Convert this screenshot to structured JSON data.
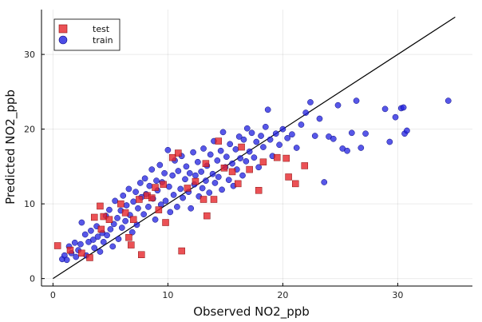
{
  "chart_data": {
    "type": "scatter",
    "xlabel": "Observed NO2_ppb",
    "ylabel": "Predicted NO2_ppb",
    "xlim": [
      -1,
      36.5
    ],
    "ylim": [
      -1,
      36
    ],
    "xticks": [
      0,
      10,
      20,
      30
    ],
    "yticks": [
      0,
      10,
      20,
      30
    ],
    "grid": true,
    "legend_position": "top-left",
    "reference_line": {
      "x": [
        0,
        35
      ],
      "y": [
        0,
        35
      ],
      "color": "#000000"
    },
    "series": [
      {
        "name": "test",
        "marker": "square",
        "color": "#e6262b",
        "points": [
          [
            0.4,
            4.4
          ],
          [
            1.5,
            3.8
          ],
          [
            2.5,
            3.4
          ],
          [
            3.2,
            2.8
          ],
          [
            3.6,
            8.2
          ],
          [
            4.1,
            9.7
          ],
          [
            4.2,
            6.6
          ],
          [
            4.4,
            8.3
          ],
          [
            4.9,
            7.9
          ],
          [
            5.9,
            10.0
          ],
          [
            6.3,
            8.8
          ],
          [
            6.6,
            5.5
          ],
          [
            6.8,
            4.5
          ],
          [
            7.0,
            7.9
          ],
          [
            7.5,
            10.6
          ],
          [
            7.7,
            3.2
          ],
          [
            8.2,
            11.1
          ],
          [
            8.6,
            10.8
          ],
          [
            8.9,
            12.2
          ],
          [
            9.2,
            9.2
          ],
          [
            9.6,
            12.6
          ],
          [
            9.8,
            7.5
          ],
          [
            10.4,
            16.2
          ],
          [
            10.9,
            16.8
          ],
          [
            11.2,
            3.7
          ],
          [
            11.7,
            12.1
          ],
          [
            12.4,
            13.0
          ],
          [
            13.1,
            10.6
          ],
          [
            13.3,
            15.4
          ],
          [
            13.4,
            8.4
          ],
          [
            14.0,
            10.6
          ],
          [
            14.4,
            18.4
          ],
          [
            14.9,
            14.8
          ],
          [
            15.6,
            14.3
          ],
          [
            16.1,
            12.7
          ],
          [
            16.4,
            17.6
          ],
          [
            17.1,
            14.6
          ],
          [
            17.9,
            11.8
          ],
          [
            18.3,
            15.6
          ],
          [
            19.5,
            16.2
          ],
          [
            20.3,
            16.1
          ],
          [
            20.5,
            13.6
          ],
          [
            21.1,
            12.7
          ],
          [
            21.9,
            15.1
          ]
        ]
      },
      {
        "name": "train",
        "marker": "circle",
        "color": "#1f1fe0",
        "points": [
          [
            0.8,
            2.6
          ],
          [
            1.0,
            3.1
          ],
          [
            1.2,
            2.5
          ],
          [
            1.4,
            4.3
          ],
          [
            1.6,
            3.4
          ],
          [
            1.9,
            4.8
          ],
          [
            2.0,
            2.9
          ],
          [
            2.2,
            3.8
          ],
          [
            2.4,
            4.6
          ],
          [
            2.5,
            7.5
          ],
          [
            2.8,
            5.9
          ],
          [
            2.9,
            3.1
          ],
          [
            3.1,
            4.9
          ],
          [
            3.3,
            6.4
          ],
          [
            3.5,
            5.2
          ],
          [
            3.6,
            4.1
          ],
          [
            3.8,
            7.0
          ],
          [
            3.9,
            5.6
          ],
          [
            4.1,
            3.6
          ],
          [
            4.3,
            6.1
          ],
          [
            4.4,
            4.9
          ],
          [
            4.6,
            8.4
          ],
          [
            4.7,
            5.8
          ],
          [
            4.9,
            9.2
          ],
          [
            5.0,
            6.6
          ],
          [
            5.2,
            4.3
          ],
          [
            5.3,
            7.3
          ],
          [
            5.4,
            10.4
          ],
          [
            5.6,
            8.1
          ],
          [
            5.7,
            5.3
          ],
          [
            5.9,
            9.1
          ],
          [
            6.0,
            6.8
          ],
          [
            6.1,
            11.1
          ],
          [
            6.3,
            7.7
          ],
          [
            6.4,
            9.8
          ],
          [
            6.6,
            12.0
          ],
          [
            6.7,
            8.5
          ],
          [
            6.9,
            6.2
          ],
          [
            7.0,
            10.3
          ],
          [
            7.2,
            11.6
          ],
          [
            7.3,
            7.2
          ],
          [
            7.4,
            9.4
          ],
          [
            7.6,
            12.8
          ],
          [
            7.7,
            10.9
          ],
          [
            7.9,
            8.6
          ],
          [
            8.0,
            13.4
          ],
          [
            8.1,
            11.3
          ],
          [
            8.3,
            9.6
          ],
          [
            8.4,
            12.4
          ],
          [
            8.6,
            14.6
          ],
          [
            8.7,
            10.7
          ],
          [
            8.9,
            7.9
          ],
          [
            9.0,
            13.1
          ],
          [
            9.1,
            11.8
          ],
          [
            9.3,
            15.2
          ],
          [
            9.4,
            9.9
          ],
          [
            9.5,
            12.9
          ],
          [
            9.7,
            14.1
          ],
          [
            9.8,
            10.4
          ],
          [
            10.0,
            17.2
          ],
          [
            10.1,
            12.3
          ],
          [
            10.2,
            8.9
          ],
          [
            10.4,
            13.8
          ],
          [
            10.5,
            11.2
          ],
          [
            10.6,
            15.8
          ],
          [
            10.8,
            9.6
          ],
          [
            10.9,
            14.4
          ],
          [
            11.1,
            12.0
          ],
          [
            11.2,
            16.4
          ],
          [
            11.3,
            10.8
          ],
          [
            11.5,
            13.3
          ],
          [
            11.6,
            15.0
          ],
          [
            11.8,
            11.6
          ],
          [
            11.9,
            14.1
          ],
          [
            12.0,
            9.4
          ],
          [
            12.2,
            16.9
          ],
          [
            12.3,
            12.6
          ],
          [
            12.4,
            13.8
          ],
          [
            12.6,
            15.6
          ],
          [
            12.7,
            11.0
          ],
          [
            12.9,
            14.3
          ],
          [
            13.0,
            12.1
          ],
          [
            13.1,
            17.4
          ],
          [
            13.3,
            13.1
          ],
          [
            13.4,
            15.1
          ],
          [
            13.6,
            11.5
          ],
          [
            13.7,
            16.6
          ],
          [
            13.9,
            14.0
          ],
          [
            14.0,
            18.4
          ],
          [
            14.1,
            12.8
          ],
          [
            14.3,
            15.8
          ],
          [
            14.4,
            13.6
          ],
          [
            14.6,
            17.1
          ],
          [
            14.7,
            11.9
          ],
          [
            14.8,
            19.6
          ],
          [
            15.0,
            14.9
          ],
          [
            15.1,
            16.3
          ],
          [
            15.3,
            13.2
          ],
          [
            15.4,
            18.0
          ],
          [
            15.6,
            15.4
          ],
          [
            15.7,
            12.4
          ],
          [
            15.9,
            17.3
          ],
          [
            16.0,
            14.6
          ],
          [
            16.2,
            19.0
          ],
          [
            16.3,
            16.1
          ],
          [
            16.5,
            13.8
          ],
          [
            16.6,
            18.6
          ],
          [
            16.8,
            15.7
          ],
          [
            16.9,
            20.1
          ],
          [
            17.1,
            17.0
          ],
          [
            17.3,
            19.5
          ],
          [
            17.5,
            16.2
          ],
          [
            17.7,
            18.3
          ],
          [
            17.9,
            14.9
          ],
          [
            18.1,
            19.1
          ],
          [
            18.3,
            17.6
          ],
          [
            18.5,
            20.3
          ],
          [
            18.7,
            22.6
          ],
          [
            18.9,
            18.6
          ],
          [
            19.1,
            16.4
          ],
          [
            19.4,
            19.4
          ],
          [
            19.7,
            17.9
          ],
          [
            20.0,
            20.0
          ],
          [
            20.4,
            18.8
          ],
          [
            20.8,
            19.3
          ],
          [
            21.2,
            17.5
          ],
          [
            21.6,
            20.6
          ],
          [
            22.0,
            22.2
          ],
          [
            22.4,
            23.6
          ],
          [
            22.8,
            19.1
          ],
          [
            23.2,
            21.4
          ],
          [
            23.6,
            12.9
          ],
          [
            24.0,
            19.0
          ],
          [
            24.4,
            18.7
          ],
          [
            24.8,
            23.2
          ],
          [
            25.2,
            17.4
          ],
          [
            25.6,
            17.1
          ],
          [
            26.0,
            19.5
          ],
          [
            26.4,
            23.8
          ],
          [
            26.8,
            17.5
          ],
          [
            27.2,
            19.4
          ],
          [
            28.9,
            22.7
          ],
          [
            29.3,
            18.3
          ],
          [
            29.8,
            21.6
          ],
          [
            30.3,
            22.8
          ],
          [
            30.5,
            22.9
          ],
          [
            30.6,
            19.4
          ],
          [
            30.8,
            19.8
          ],
          [
            34.4,
            23.8
          ]
        ]
      }
    ]
  }
}
